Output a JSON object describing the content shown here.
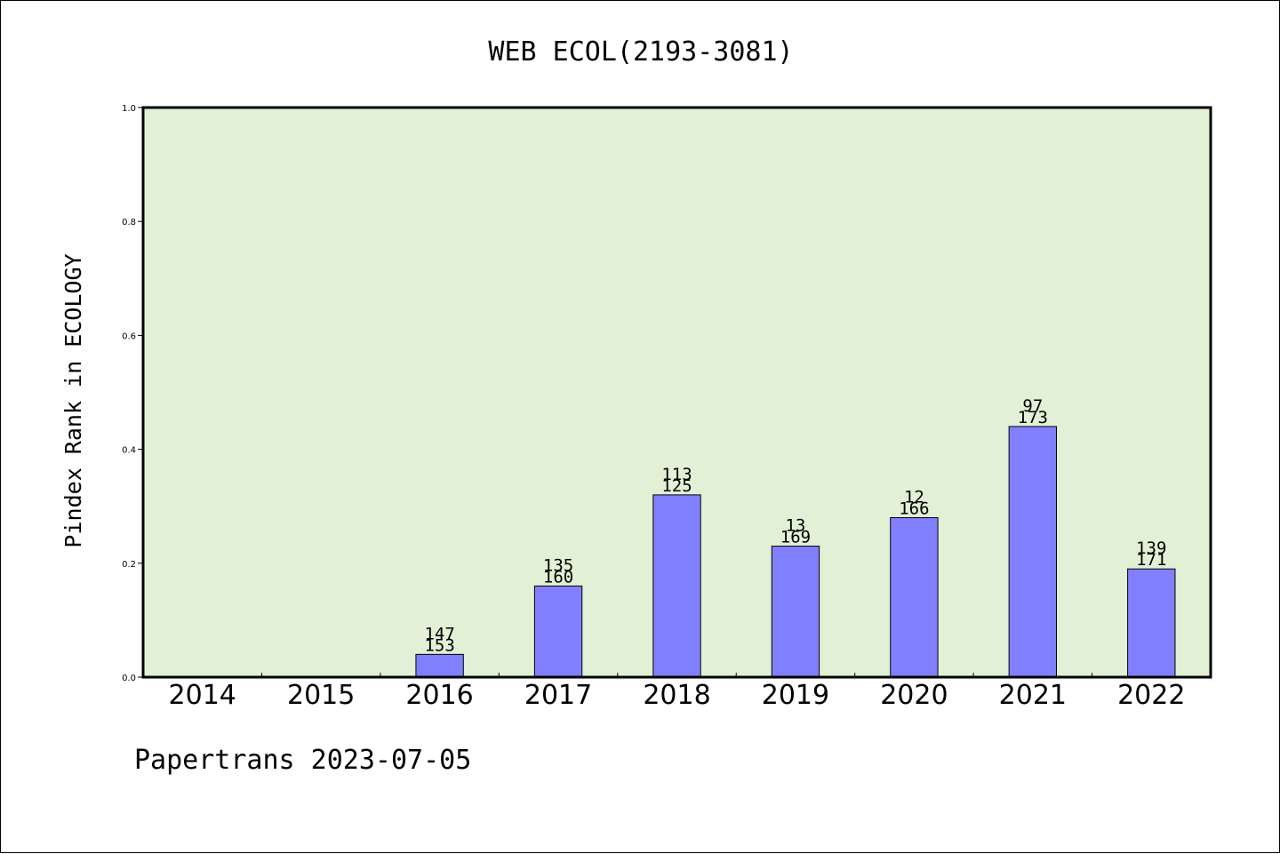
{
  "chart_data": {
    "type": "bar",
    "title": "WEB ECOL(2193-3081)",
    "ylabel": "Pindex Rank in ECOLOGY",
    "xlabel": "",
    "footer": "Papertrans 2023-07-05",
    "categories": [
      "2014",
      "2015",
      "2016",
      "2017",
      "2018",
      "2019",
      "2020",
      "2021",
      "2022"
    ],
    "values": [
      0,
      0,
      0.04,
      0.16,
      0.32,
      0.23,
      0.28,
      0.44,
      0.19
    ],
    "labels_top": [
      "",
      "",
      "147",
      "135",
      "113",
      "13",
      "12",
      "97",
      "139"
    ],
    "labels_bottom": [
      "",
      "",
      "153",
      "160",
      "125",
      "169",
      "166",
      "173",
      "171"
    ],
    "ylim": [
      0,
      1.0
    ],
    "yticks": [
      "0.0",
      "0.2",
      "0.4",
      "0.6",
      "0.8",
      "1.0"
    ],
    "grid": false,
    "colors": {
      "plot_background": "#e2f0d6",
      "bar_fill": "#8080ff",
      "bar_edge": "#000000"
    }
  }
}
